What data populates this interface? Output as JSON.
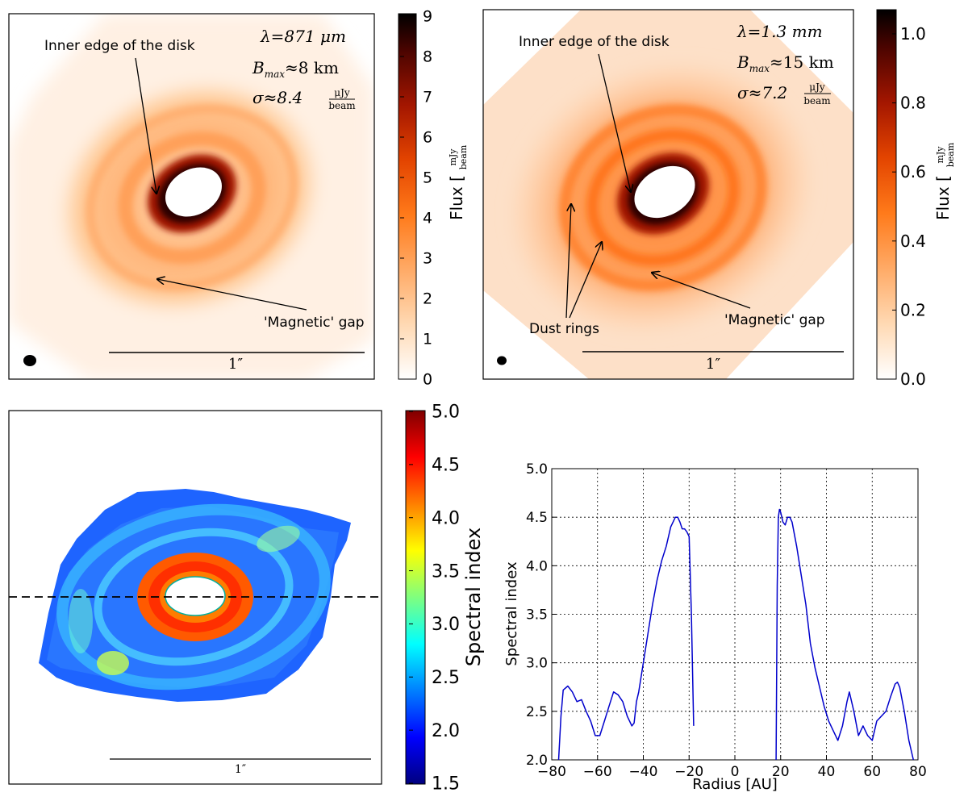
{
  "panel_a": {
    "wavelength": "λ=871 μm",
    "baseline": "B",
    "baseline_sub": "max",
    "baseline_val": "≈8 km",
    "sigma": "σ≈8.4",
    "unit_num": "μJy",
    "unit_den": "beam",
    "label_inner": "Inner edge of the disk",
    "label_gap": "'Magnetic' gap",
    "scale": "1″",
    "colorbar_label": "Flux",
    "cbar_unit_num": "mJy",
    "cbar_unit_den": "beam",
    "colorbar_ticks": [
      "0",
      "1",
      "2",
      "3",
      "4",
      "5",
      "6",
      "7",
      "8",
      "9"
    ]
  },
  "panel_b": {
    "wavelength": "λ=1.3 mm",
    "baseline": "B",
    "baseline_sub": "max",
    "baseline_val": "≈15 km",
    "sigma": "σ≈7.2",
    "unit_num": "μJy",
    "unit_den": "beam",
    "label_inner": "Inner edge of the disk",
    "label_rings": "Dust rings",
    "label_gap": "'Magnetic' gap",
    "scale": "1″",
    "colorbar_label": "Flux",
    "cbar_unit_num": "mJy",
    "cbar_unit_den": "beam",
    "colorbar_ticks": [
      "0.0",
      "0.2",
      "0.4",
      "0.6",
      "0.8",
      "1.0"
    ]
  },
  "panel_c": {
    "scale": "1″",
    "colorbar_label": "Spectral index",
    "colorbar_ticks": [
      "1.5",
      "2.0",
      "2.5",
      "3.0",
      "3.5",
      "4.0",
      "4.5",
      "5.0"
    ]
  },
  "colors": {
    "line": "#0000cc",
    "grid": "#000000"
  },
  "chart_data": {
    "type": "line",
    "xlabel": "Radius [AU]",
    "ylabel": "Spectral index",
    "xlim": [
      -80,
      80
    ],
    "ylim": [
      2.0,
      5.0
    ],
    "xticks": [
      -80,
      -60,
      -40,
      -20,
      0,
      20,
      40,
      60,
      80
    ],
    "yticks": [
      2.0,
      2.5,
      3.0,
      3.5,
      4.0,
      4.5,
      5.0
    ],
    "xtick_labels": [
      "−80",
      "−60",
      "−40",
      "−20",
      "0",
      "20",
      "40",
      "60",
      "80"
    ],
    "ytick_labels": [
      "2.0",
      "2.5",
      "3.0",
      "3.5",
      "4.0",
      "4.5",
      "5.0"
    ],
    "grid": true,
    "series": [
      {
        "name": "left",
        "x": [
          -77,
          -76,
          -75,
          -73,
          -71,
          -69,
          -67,
          -65,
          -63,
          -61,
          -59,
          -57,
          -55,
          -53,
          -51,
          -49,
          -47,
          -45,
          -44,
          -43,
          -42,
          -40,
          -38,
          -36,
          -34,
          -32,
          -30,
          -28,
          -26,
          -25,
          -24,
          -23,
          -22,
          -21,
          -20,
          -19,
          -18
        ],
        "y": [
          2.0,
          2.45,
          2.72,
          2.76,
          2.7,
          2.6,
          2.62,
          2.5,
          2.4,
          2.25,
          2.25,
          2.4,
          2.55,
          2.7,
          2.67,
          2.6,
          2.45,
          2.35,
          2.38,
          2.6,
          2.7,
          3.0,
          3.3,
          3.6,
          3.85,
          4.05,
          4.2,
          4.4,
          4.5,
          4.5,
          4.45,
          4.38,
          4.38,
          4.35,
          4.3,
          3.5,
          2.35
        ]
      },
      {
        "name": "right",
        "x": [
          18,
          18.5,
          19,
          19.5,
          20,
          21,
          22,
          23,
          24,
          25,
          27,
          29,
          31,
          33,
          35,
          37,
          39,
          41,
          43,
          45,
          47,
          49,
          50,
          52,
          54,
          56,
          58,
          60,
          62,
          64,
          66,
          68,
          70,
          71,
          72,
          74,
          76,
          78
        ],
        "y": [
          2.0,
          3.8,
          4.5,
          4.58,
          4.55,
          4.45,
          4.42,
          4.5,
          4.5,
          4.45,
          4.2,
          3.9,
          3.6,
          3.2,
          2.95,
          2.75,
          2.55,
          2.4,
          2.3,
          2.2,
          2.35,
          2.6,
          2.7,
          2.5,
          2.25,
          2.35,
          2.25,
          2.2,
          2.4,
          2.45,
          2.5,
          2.65,
          2.78,
          2.8,
          2.75,
          2.5,
          2.2,
          2.0
        ]
      }
    ]
  }
}
